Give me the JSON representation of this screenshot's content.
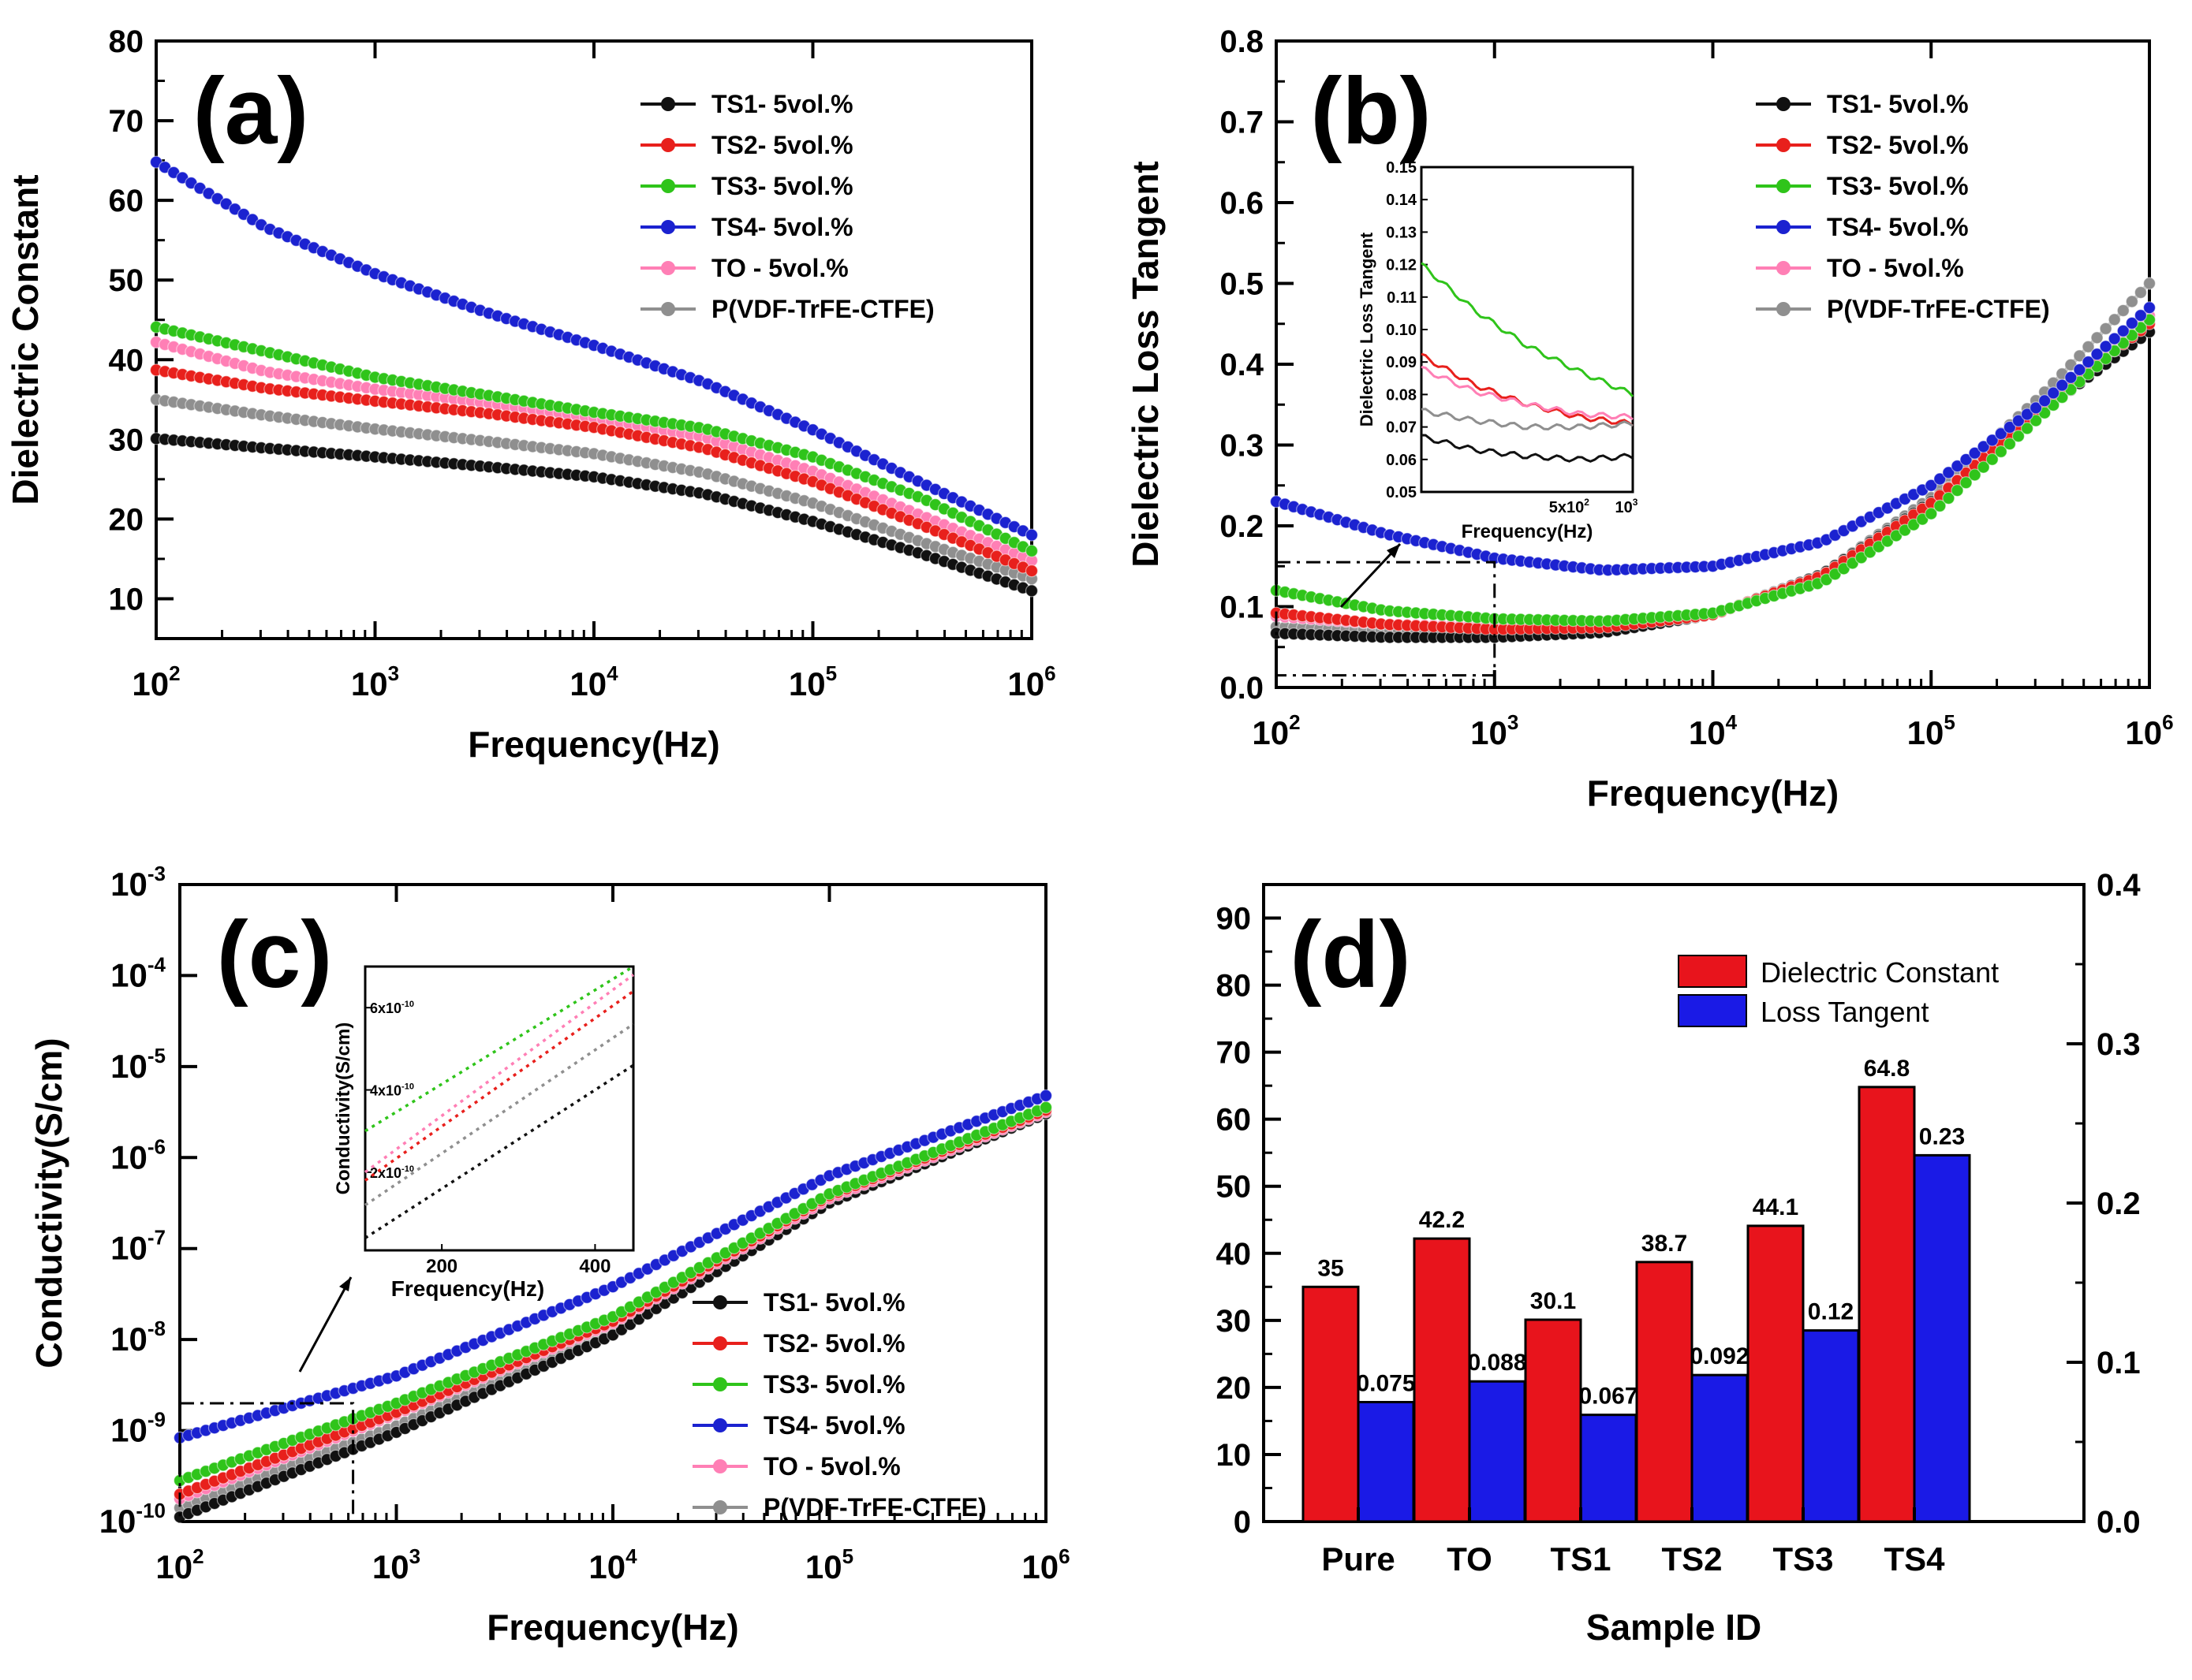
{
  "colors": {
    "TS1": "#111111",
    "TS2": "#e8201c",
    "TS3": "#2fc41a",
    "TS4": "#1b22d0",
    "TO": "#ff7fb5",
    "PVDF": "#8f8f8f",
    "bar_dielectric": "#e8141c",
    "bar_loss": "#1a1ae6"
  },
  "chart_data": [
    {
      "id": "a",
      "type": "line",
      "panel_label": "(a)",
      "xlabel": "Frequency(Hz)",
      "ylabel": "Dielectric Constant",
      "xscale": "log",
      "xlim": [
        100,
        1000000
      ],
      "ylim": [
        5,
        80
      ],
      "yticks": [
        "10",
        "20",
        "30",
        "40",
        "50",
        "60",
        "70",
        "80"
      ],
      "xticks": [
        "10",
        "10",
        "10",
        "10",
        "10"
      ],
      "xtick_exps": [
        "2",
        "3",
        "4",
        "5",
        "6"
      ],
      "x_points": [
        2,
        2.5,
        3,
        3.5,
        4,
        4.5,
        5,
        5.5,
        6
      ],
      "series": [
        {
          "key": "TS1",
          "name": "TS1- 5vol.%",
          "values": [
            30.1,
            28.9,
            27.8,
            26.6,
            25.3,
            23.2,
            19.7,
            15.6,
            11.0
          ]
        },
        {
          "key": "TS2",
          "name": "TS2- 5vol.%",
          "values": [
            38.7,
            36.4,
            34.8,
            33.3,
            31.5,
            28.9,
            24.7,
            19.2,
            13.5
          ]
        },
        {
          "key": "TS3",
          "name": "TS3- 5vol.%",
          "values": [
            44.1,
            41.0,
            37.8,
            35.6,
            33.4,
            31.4,
            27.8,
            22.6,
            16.0
          ]
        },
        {
          "key": "TS4",
          "name": "TS4- 5vol.%",
          "values": [
            64.8,
            56.6,
            50.8,
            46.0,
            41.8,
            37.2,
            31.2,
            24.5,
            18.0
          ]
        },
        {
          "key": "TO",
          "name": "TO - 5vol.%",
          "values": [
            42.2,
            38.5,
            36.3,
            34.6,
            32.7,
            30.3,
            26.0,
            20.4,
            14.8
          ]
        },
        {
          "key": "PVDF",
          "name": "P(VDF-TrFE-CTFE)",
          "values": [
            35.0,
            33.0,
            31.3,
            29.8,
            28.2,
            25.8,
            22.0,
            17.1,
            12.5
          ]
        }
      ]
    },
    {
      "id": "b",
      "type": "line",
      "panel_label": "(b)",
      "xlabel": "Frequency(Hz)",
      "ylabel": "Dielectric Loss Tangent",
      "xscale": "log",
      "xlim": [
        100,
        1000000
      ],
      "ylim": [
        0,
        0.8
      ],
      "yticks": [
        "0.0",
        "0.1",
        "0.2",
        "0.3",
        "0.4",
        "0.5",
        "0.6",
        "0.7",
        "0.8"
      ],
      "xticks": [
        "10",
        "10",
        "10",
        "10",
        "10"
      ],
      "xtick_exps": [
        "2",
        "3",
        "4",
        "5",
        "6"
      ],
      "x_points": [
        2,
        2.5,
        3,
        3.5,
        4,
        4.5,
        5,
        5.5,
        6
      ],
      "series": [
        {
          "key": "TS1",
          "name": "TS1- 5vol.%",
          "values": [
            0.067,
            0.062,
            0.062,
            0.068,
            0.09,
            0.14,
            0.23,
            0.34,
            0.44
          ]
        },
        {
          "key": "TS2",
          "name": "TS2- 5vol.%",
          "values": [
            0.092,
            0.078,
            0.072,
            0.074,
            0.09,
            0.138,
            0.228,
            0.345,
            0.45
          ]
        },
        {
          "key": "TS3",
          "name": "TS3- 5vol.%",
          "values": [
            0.12,
            0.095,
            0.085,
            0.082,
            0.092,
            0.13,
            0.215,
            0.335,
            0.455
          ]
        },
        {
          "key": "TS4",
          "name": "TS4- 5vol.%",
          "values": [
            0.23,
            0.19,
            0.16,
            0.145,
            0.15,
            0.18,
            0.25,
            0.35,
            0.47
          ]
        },
        {
          "key": "TO",
          "name": "TO - 5vol.%",
          "values": [
            0.088,
            0.078,
            0.075,
            0.075,
            0.09,
            0.138,
            0.228,
            0.345,
            0.46
          ]
        },
        {
          "key": "PVDF",
          "name": "P(VDF-TrFE-CTFE)",
          "values": [
            0.075,
            0.07,
            0.07,
            0.073,
            0.09,
            0.14,
            0.235,
            0.36,
            0.5
          ]
        }
      ],
      "inset": {
        "xlabel": "Frequency(Hz)",
        "ylabel": "Dielectric Loss Tangent",
        "xticks": [
          "5x10",
          "10"
        ],
        "xtick_exps": [
          "2",
          "3"
        ],
        "yticks": [
          "0.05",
          "0.06",
          "0.07",
          "0.08",
          "0.09",
          "0.10",
          "0.11",
          "0.12",
          "0.13",
          "0.14",
          "0.15"
        ],
        "xlim": [
          100,
          1000
        ],
        "ylim": [
          0.05,
          0.15
        ],
        "series": [
          {
            "key": "TS1",
            "values": [
              0.067,
              0.063,
              0.061,
              0.06,
              0.061
            ]
          },
          {
            "key": "TS2",
            "values": [
              0.092,
              0.083,
              0.077,
              0.073,
              0.071
            ]
          },
          {
            "key": "TS3",
            "values": [
              0.12,
              0.106,
              0.095,
              0.087,
              0.08
            ]
          },
          {
            "key": "TO",
            "values": [
              0.088,
              0.081,
              0.077,
              0.074,
              0.073
            ]
          },
          {
            "key": "PVDF",
            "values": [
              0.075,
              0.072,
              0.07,
              0.07,
              0.071
            ]
          }
        ]
      }
    },
    {
      "id": "c",
      "type": "line",
      "panel_label": "(c)",
      "xlabel": "Frequency(Hz)",
      "ylabel": "Conductivity(S/cm)",
      "xscale": "log",
      "yscale": "log",
      "xlim": [
        100,
        1000000
      ],
      "ylim": [
        1e-10,
        0.001
      ],
      "yticks": [
        "10",
        "10",
        "10",
        "10",
        "10",
        "10",
        "10",
        "10"
      ],
      "ytick_exps": [
        "-10",
        "-9",
        "-8",
        "-7",
        "-6",
        "-5",
        "-4",
        "-3"
      ],
      "xticks": [
        "10",
        "10",
        "10",
        "10",
        "10"
      ],
      "xtick_exps": [
        "2",
        "3",
        "4",
        "5",
        "6"
      ],
      "x_points": [
        2,
        3,
        4,
        5,
        6
      ],
      "series": [
        {
          "key": "TS1",
          "name": "TS1- 5vol.%",
          "log_values": [
            -9.95,
            -9.02,
            -7.95,
            -6.5,
            -5.52
          ]
        },
        {
          "key": "TS2",
          "name": "TS2- 5vol.%",
          "log_values": [
            -9.7,
            -8.8,
            -7.8,
            -6.42,
            -5.48
          ]
        },
        {
          "key": "TS3",
          "name": "TS3- 5vol.%",
          "log_values": [
            -9.55,
            -8.7,
            -7.75,
            -6.4,
            -5.45
          ]
        },
        {
          "key": "TS4",
          "name": "TS4- 5vol.%",
          "log_values": [
            -9.08,
            -8.4,
            -7.42,
            -6.2,
            -5.32
          ]
        },
        {
          "key": "TO",
          "name": "TO - 5vol.%",
          "log_values": [
            -9.75,
            -8.82,
            -7.82,
            -6.45,
            -5.5
          ]
        },
        {
          "key": "PVDF",
          "name": "P(VDF-TrFE-CTFE)",
          "log_values": [
            -9.85,
            -8.95,
            -7.9,
            -6.48,
            -5.5
          ]
        }
      ],
      "inset": {
        "xlabel": "Frequency(Hz)",
        "ylabel": "Conductivity(S/cm)",
        "xticks": [
          "200",
          "400"
        ],
        "yticks": [
          "2x10",
          "4x10",
          "6x10"
        ],
        "ytick_exps": [
          "-10",
          "-10",
          "-10"
        ],
        "xlim": [
          100,
          450
        ],
        "ylim": [
          1e-11,
          7e-10
        ],
        "series": [
          {
            "key": "TS1",
            "values": [
              4e-11,
              4.6e-10
            ]
          },
          {
            "key": "TS2",
            "values": [
              1.8e-10,
              6.4e-10
            ]
          },
          {
            "key": "TS3",
            "values": [
              3e-10,
              7e-10
            ]
          },
          {
            "key": "TO",
            "values": [
              2e-10,
              6.8e-10
            ]
          },
          {
            "key": "PVDF",
            "values": [
              1.2e-10,
              5.6e-10
            ]
          }
        ]
      }
    },
    {
      "id": "d",
      "type": "bar",
      "panel_label": "(d)",
      "xlabel": "Sample ID",
      "categories": [
        "Pure",
        "TO",
        "TS1",
        "TS2",
        "TS3",
        "TS4"
      ],
      "ylim_left": [
        0,
        95
      ],
      "ylim_right": [
        0,
        0.4
      ],
      "yticks_left": [
        "0",
        "10",
        "20",
        "30",
        "40",
        "50",
        "60",
        "70",
        "80",
        "90"
      ],
      "yticks_right": [
        "0.0",
        "0.1",
        "0.2",
        "0.3",
        "0.4"
      ],
      "series": [
        {
          "name": "Dielectric Constant",
          "axis": "left",
          "values": [
            35,
            42.2,
            30.1,
            38.7,
            44.1,
            64.8
          ],
          "labels": [
            "35",
            "42.2",
            "30.1",
            "38.7",
            "44.1",
            "64.8"
          ]
        },
        {
          "name": "Loss Tangent",
          "axis": "right",
          "values": [
            0.075,
            0.088,
            0.067,
            0.092,
            0.12,
            0.23
          ],
          "labels": [
            "0.075",
            "0.088",
            "0.067",
            "0.092",
            "0.12",
            "0.23"
          ]
        }
      ]
    }
  ]
}
